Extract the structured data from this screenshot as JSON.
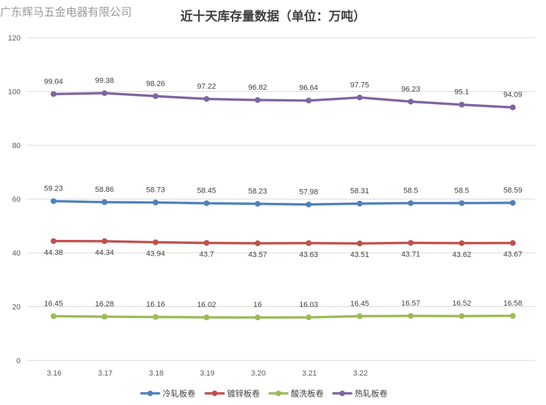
{
  "watermark": "广东辉马五金电器有限公司",
  "chart_data": {
    "type": "line",
    "title": "近十天库存量数据（单位：万吨）",
    "categories": [
      "3.16",
      "3.17",
      "3.18",
      "3.19",
      "3.20",
      "3.21",
      "3.22",
      "",
      "",
      ""
    ],
    "ylim": [
      0,
      120
    ],
    "yticks": [
      0,
      20,
      40,
      60,
      80,
      100,
      120
    ],
    "grid": true,
    "legend_position": "bottom",
    "series": [
      {
        "name": "冷轧板卷",
        "color": "#4f81bd",
        "label_position": "above",
        "values": [
          59.23,
          58.86,
          58.73,
          58.45,
          58.23,
          57.98,
          58.31,
          58.5,
          58.5,
          58.59
        ]
      },
      {
        "name": "镀锌板卷",
        "color": "#c0504d",
        "label_position": "below",
        "values": [
          44.38,
          44.34,
          43.94,
          43.7,
          43.57,
          43.63,
          43.51,
          43.71,
          43.62,
          43.67
        ]
      },
      {
        "name": "酸洗板卷",
        "color": "#9bbb59",
        "label_position": "above",
        "values": [
          16.45,
          16.28,
          16.16,
          16.02,
          16,
          16.03,
          16.45,
          16.57,
          16.52,
          16.58
        ]
      },
      {
        "name": "热轧板卷",
        "color": "#8064a2",
        "label_position": "above",
        "values": [
          99.04,
          99.38,
          98.26,
          97.22,
          96.82,
          96.64,
          97.75,
          96.23,
          95.1,
          94.09
        ]
      }
    ]
  }
}
